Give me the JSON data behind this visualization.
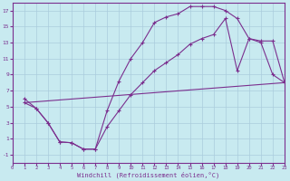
{
  "line1_x": [
    1,
    2,
    3,
    4,
    5,
    6,
    7,
    8,
    9,
    10,
    11,
    12,
    13,
    14,
    15,
    16,
    17,
    18,
    19,
    20,
    21,
    22,
    23
  ],
  "line1_y": [
    6.0,
    4.8,
    3.0,
    0.6,
    0.5,
    -0.3,
    -0.3,
    4.5,
    8.2,
    11.0,
    13.0,
    15.5,
    16.2,
    16.6,
    17.5,
    17.5,
    17.5,
    17.0,
    16.0,
    13.5,
    13.0,
    9.0,
    8.0
  ],
  "line2_x": [
    1,
    2,
    3,
    4,
    5,
    6,
    7,
    8,
    9,
    10,
    11,
    12,
    13,
    14,
    15,
    16,
    17,
    18,
    19,
    20,
    21,
    22,
    23
  ],
  "line2_y": [
    5.5,
    4.8,
    3.0,
    0.6,
    0.5,
    -0.3,
    -0.3,
    2.5,
    4.5,
    6.5,
    8.0,
    9.5,
    10.5,
    11.5,
    12.8,
    13.5,
    14.0,
    16.0,
    9.5,
    13.5,
    13.2,
    13.2,
    8.0
  ],
  "line3_x": [
    1,
    23
  ],
  "line3_y": [
    5.5,
    8.0
  ],
  "line_color": "#7b2f8e",
  "bg_color": "#c8eaf0",
  "grid_color": "#aaccdd",
  "xlabel": "Windchill (Refroidissement éolien,°C)",
  "ylim": [
    -2,
    18
  ],
  "xlim": [
    0,
    23
  ],
  "yticks": [
    -1,
    1,
    3,
    5,
    7,
    9,
    11,
    13,
    15,
    17
  ],
  "xticks": [
    0,
    1,
    2,
    3,
    4,
    5,
    6,
    7,
    8,
    9,
    10,
    11,
    12,
    13,
    14,
    15,
    16,
    17,
    18,
    19,
    20,
    21,
    22,
    23
  ]
}
